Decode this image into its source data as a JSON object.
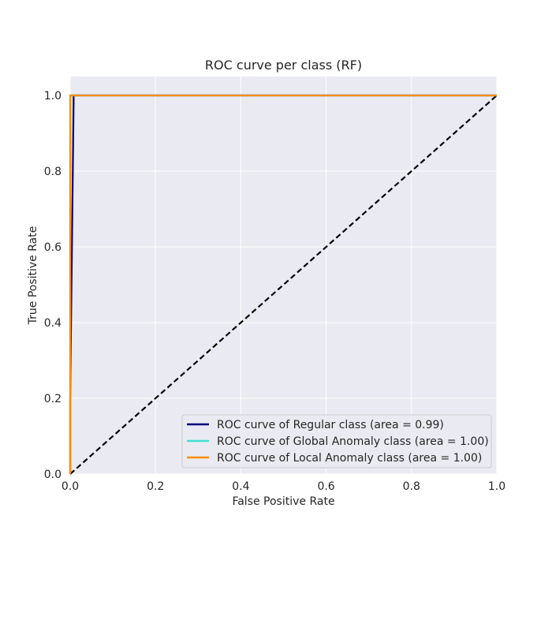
{
  "chart_data": {
    "type": "line",
    "title": "ROC curve per class (RF)",
    "xlabel": "False Positive Rate",
    "ylabel": "True Positive Rate",
    "xlim": [
      0.0,
      1.0
    ],
    "ylim": [
      0.0,
      1.05
    ],
    "xticks": [
      "0.0",
      "0.2",
      "0.4",
      "0.6",
      "0.8",
      "1.0"
    ],
    "yticks": [
      "0.0",
      "0.2",
      "0.4",
      "0.6",
      "0.8",
      "1.0"
    ],
    "xtick_values": [
      0.0,
      0.2,
      0.4,
      0.6,
      0.8,
      1.0
    ],
    "ytick_values": [
      0.0,
      0.2,
      0.4,
      0.6,
      0.8,
      1.0
    ],
    "grid": true,
    "legend_position": "lower-right",
    "series": [
      {
        "name": "ROC curve of Regular class (area = 0.99)",
        "color": "#000080",
        "x": [
          0.0,
          0.0,
          0.008,
          0.008,
          1.0
        ],
        "y": [
          0.0,
          0.2,
          0.98,
          1.0,
          1.0
        ]
      },
      {
        "name": "ROC curve of Global Anomaly class (area = 1.00)",
        "color": "#40e0d0",
        "x": [
          0.0,
          0.0,
          0.0,
          1.0
        ],
        "y": [
          0.0,
          0.2,
          1.0,
          1.0
        ]
      },
      {
        "name": "ROC curve of Local Anomaly class (area = 1.00)",
        "color": "#ff8c00",
        "x": [
          0.0,
          0.0,
          1.0
        ],
        "y": [
          0.0,
          1.0,
          1.0
        ]
      }
    ],
    "diagonal": {
      "x": [
        0.0,
        1.0
      ],
      "y": [
        0.0,
        1.0
      ],
      "color": "#000000",
      "style": "dashed"
    },
    "background_color": "#eaeaf2"
  }
}
